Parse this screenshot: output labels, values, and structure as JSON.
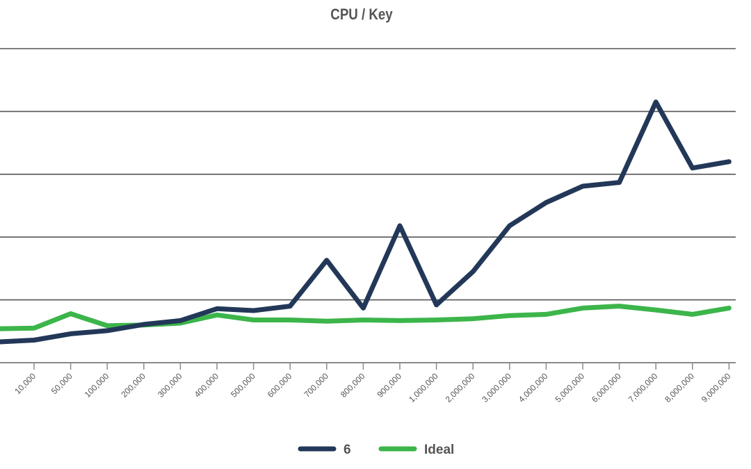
{
  "chart_data": {
    "type": "line",
    "title": "CPU / Key",
    "xlabel": "",
    "ylabel": "",
    "categories": [
      "10,000",
      "50,000",
      "100,000",
      "200,000",
      "300,000",
      "400,000",
      "500,000",
      "600,000",
      "700,000",
      "800,000",
      "900,000",
      "1,000,000",
      "2,000,000",
      "3,000,000",
      "4,000,000",
      "5,000,000",
      "6,000,000",
      "7,000,000",
      "8,000,000",
      "9,000,000"
    ],
    "leading_values": {
      "6": 0.33,
      "Ideal": 0.54
    },
    "series": [
      {
        "name": "6",
        "color": "#233858",
        "values": [
          0.36,
          0.46,
          0.51,
          0.61,
          0.67,
          0.86,
          0.83,
          0.9,
          1.63,
          0.87,
          2.18,
          0.92,
          1.45,
          2.18,
          2.55,
          2.81,
          2.87,
          4.15,
          3.1,
          3.2
        ]
      },
      {
        "name": "Ideal",
        "color": "#3cb54a",
        "values": [
          0.55,
          0.78,
          0.59,
          0.6,
          0.63,
          0.76,
          0.68,
          0.68,
          0.66,
          0.68,
          0.67,
          0.68,
          0.7,
          0.75,
          0.77,
          0.87,
          0.9,
          0.84,
          0.77,
          0.87
        ]
      }
    ],
    "ylim": [
      0,
      5
    ],
    "y_gridlines": [
      0,
      1,
      2,
      3,
      4,
      5
    ],
    "y_tick_labels_shown": false,
    "grid": true,
    "legend": "bottom-center"
  }
}
